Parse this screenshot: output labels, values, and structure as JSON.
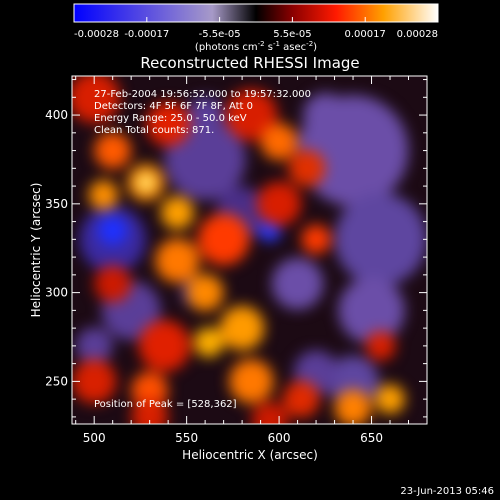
{
  "colorbar": {
    "ticks": [
      "-0.00028",
      "-0.00017",
      "-5.5e-05",
      "5.5e-05",
      "0.00017",
      "0.00028"
    ],
    "range": [
      -0.00028,
      0.00028
    ],
    "unit_prefix": "(photons cm",
    "unit_exp1": "-2",
    "unit_mid": " s",
    "unit_exp2": "-1",
    "unit_mid2": " asec",
    "unit_exp3": "-2",
    "unit_suffix": ")"
  },
  "chart_data": {
    "type": "heatmap",
    "title": "Reconstructed RHESSI Image",
    "xlabel": "Heliocentric X (arcsec)",
    "ylabel": "Heliocentric Y (arcsec)",
    "xlim": [
      488,
      680
    ],
    "ylim": [
      226,
      422
    ],
    "xticks": [
      500,
      550,
      600,
      650
    ],
    "yticks": [
      250,
      300,
      350,
      400
    ],
    "annotations": [
      "27-Feb-2004 19:56:52.000 to 19:57:32.000",
      "Detectors: 4F 5F 6F 7F 8F, Att 0",
      "Energy Range: 25.0 - 50.0 keV",
      "Clean    Total counts: 871.",
      "Position of Peak = [528,362]"
    ],
    "peak": [
      528,
      362
    ]
  },
  "footer": {
    "date": "23-Jun-2013 05:46"
  }
}
